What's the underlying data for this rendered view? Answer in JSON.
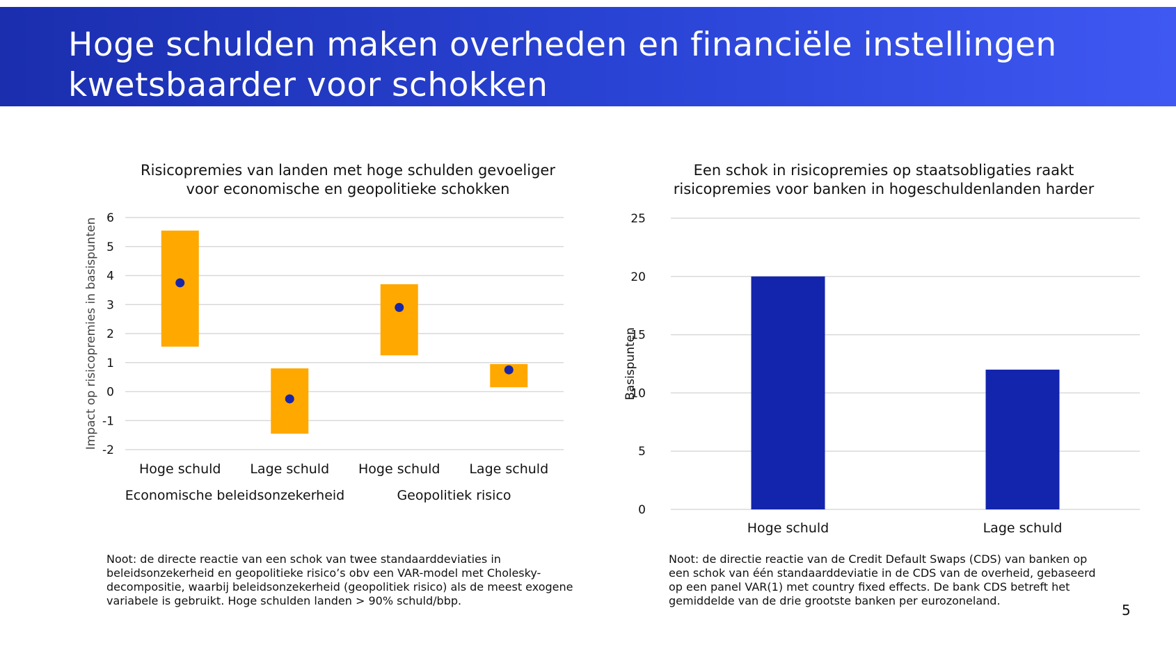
{
  "slide": {
    "title_line1": "Hoge schulden maken overheden en financiële instellingen",
    "title_line2": "kwetsbaarder voor schokken",
    "page_number": "5"
  },
  "colors": {
    "band_dark": "#1a2eae",
    "band_light": "#3f58f2",
    "range_fill": "#ffa800",
    "point": "#1826a8",
    "bar": "#1324ad",
    "grid": "#d9d9d9"
  },
  "left_chart": {
    "title_line1": "Risicopremies van landen met hoge schulden gevoeliger",
    "title_line2": "voor economische en geopolitieke schokken",
    "note_lines": [
      "Noot: de directe reactie van een schok van twee standaarddeviaties in",
      "beleidsonzekerheid en geopolitieke risico’s obv een VAR-model met Cholesky-",
      "decompositie, waarbij beleidsonzekerheid (geopolitiek risico) als de meest exogene",
      "variabele is gebruikt. Hoge schulden landen > 90% schuld/bbp."
    ]
  },
  "right_chart": {
    "title_line1": "Een schok in risicopremies op staatsobligaties raakt",
    "title_line2": "risicopremies voor banken in hogeschuldenlanden harder",
    "note_lines": [
      "Noot: de directie reactie van de Credit Default Swaps (CDS) van banken op",
      "een schok van één standaarddeviatie in de CDS van de overheid, gebaseerd",
      "op een panel VAR(1) met country fixed effects. De bank CDS betreft het",
      "gemiddelde van de drie grootste banken per eurozoneland."
    ]
  },
  "chart_data": [
    {
      "type": "range",
      "title": "Risicopremies van landen met hoge schulden gevoeliger voor economische en geopolitieke schokken",
      "ylabel": "Impact op risicopremies in basispunten",
      "ylim": [
        -2,
        6
      ],
      "yticks": [
        -2,
        -1,
        0,
        1,
        2,
        3,
        4,
        5,
        6
      ],
      "grid": true,
      "categories": [
        "Hoge schuld",
        "Lage schuld",
        "Hoge schuld",
        "Lage schuld"
      ],
      "groups": [
        {
          "label": "Economische beleidsonzekerheid",
          "start": 0,
          "end": 1
        },
        {
          "label": "Geopolitiek risico",
          "start": 2,
          "end": 3
        }
      ],
      "points": [
        3.75,
        -0.25,
        2.9,
        0.75
      ],
      "lower": [
        1.55,
        -1.45,
        1.25,
        0.15
      ],
      "upper": [
        5.55,
        0.8,
        3.7,
        0.95
      ]
    },
    {
      "type": "bar",
      "title": "Een schok in risicopremies op staatsobligaties raakt risicopremies voor banken in hogeschuldenlanden harder",
      "ylabel": "Basispunten",
      "ylim": [
        0,
        25
      ],
      "yticks": [
        0,
        5,
        10,
        15,
        20,
        25
      ],
      "grid": true,
      "categories": [
        "Hoge schuld",
        "Lage schuld"
      ],
      "values": [
        20,
        12
      ]
    }
  ]
}
